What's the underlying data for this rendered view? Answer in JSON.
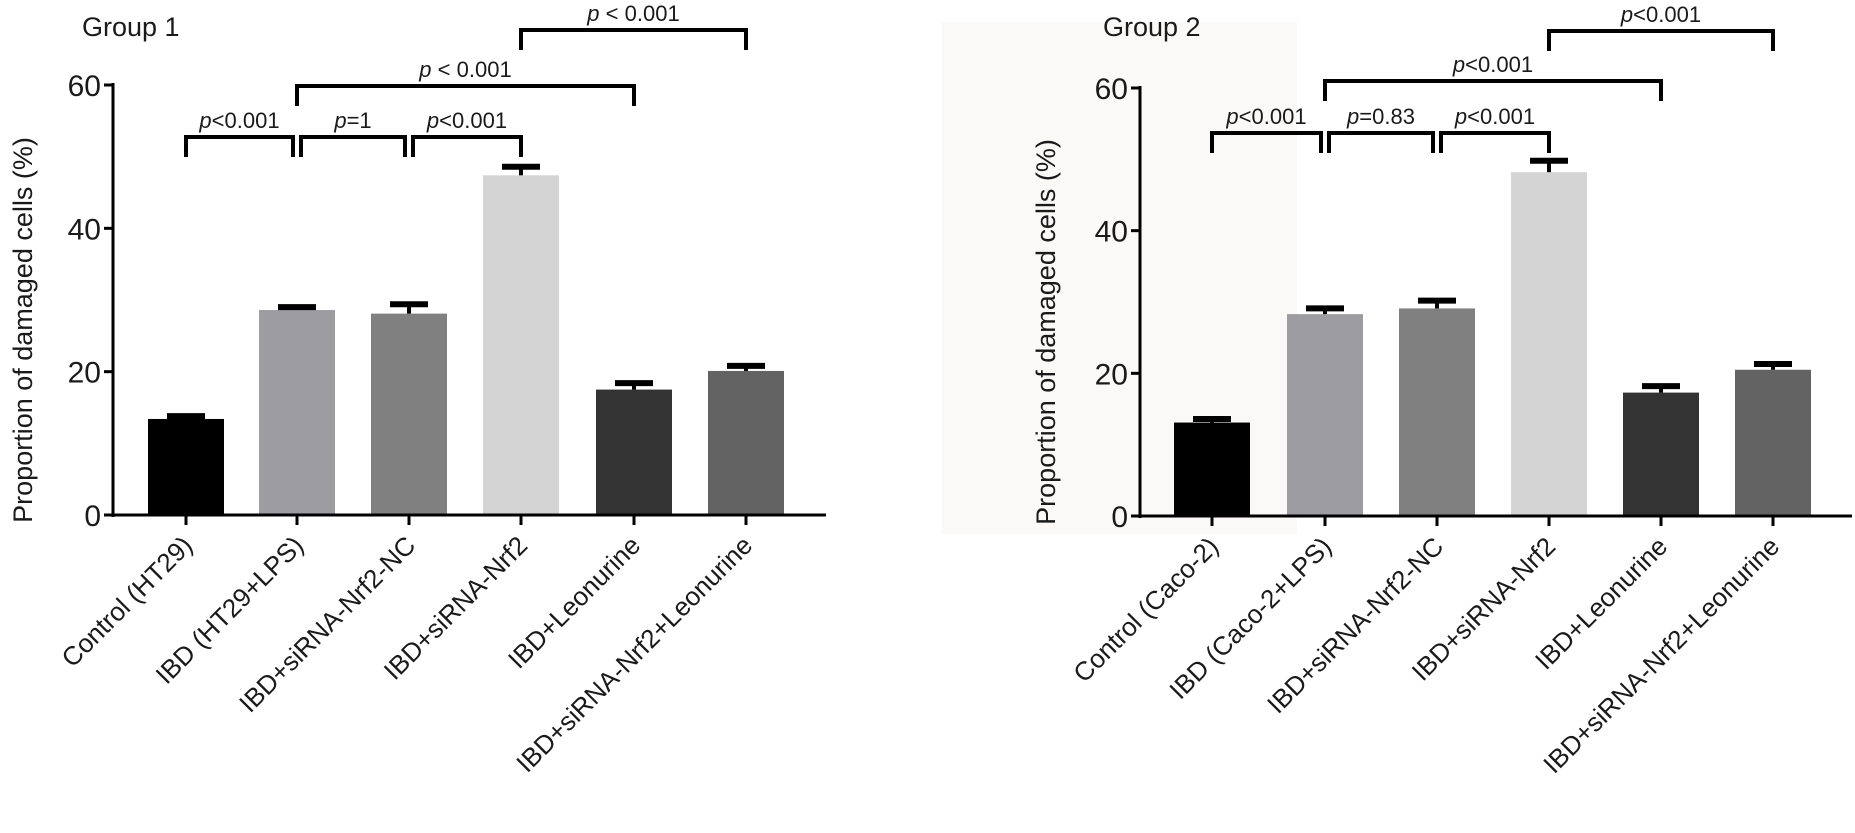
{
  "chart_data": [
    {
      "type": "bar",
      "title": "Group 1",
      "xlabel": "",
      "ylabel": "Proportion of damaged cells (%)",
      "ylim": [
        0,
        60
      ],
      "yticks": [
        0,
        20,
        40,
        60
      ],
      "grid": false,
      "categories": [
        "Control (HT29)",
        "IBD (HT29+LPS)",
        "IBD+siRNA-Nrf2-NC",
        "IBD+siRNA-Nrf2",
        "IBD+Leonurine",
        "IBD+siRNA-Nrf2+Leonurine"
      ],
      "values": [
        13.4,
        28.6,
        28.1,
        47.4,
        17.5,
        20.1
      ],
      "errors": [
        0.4,
        0.4,
        1.3,
        1.2,
        0.9,
        0.7
      ],
      "colors": [
        "#000000",
        "#9d9da1",
        "#808080",
        "#d4d4d4",
        "#333333",
        "#636363"
      ],
      "annotations": [
        {
          "label_prefix": "p",
          "label": "<0.001",
          "from": 0,
          "to": 1,
          "level": 0
        },
        {
          "label_prefix": "p",
          "label": "=1",
          "from": 1,
          "to": 2,
          "level": 0
        },
        {
          "label_prefix": "p",
          "label": "<0.001",
          "from": 2,
          "to": 3,
          "level": 0
        },
        {
          "label_prefix": "p",
          "label": " < 0.001",
          "from": 1,
          "to": 4,
          "level": 1
        },
        {
          "label_prefix": "p",
          "label": " < 0.001",
          "from": 3,
          "to": 5,
          "level": 2
        }
      ]
    },
    {
      "type": "bar",
      "title": "Group 2",
      "xlabel": "",
      "ylabel": "Proportion of damaged cells (%)",
      "ylim": [
        0,
        60
      ],
      "yticks": [
        0,
        20,
        40,
        60
      ],
      "grid": false,
      "categories": [
        "Control (Caco-2)",
        "IBD (Caco-2+LPS)",
        "IBD+siRNA-Nrf2-NC",
        "IBD+siRNA-Nrf2",
        "IBD+Leonurine",
        "IBD+siRNA-Nrf2+Leonurine"
      ],
      "values": [
        13.1,
        28.3,
        29.1,
        48.2,
        17.3,
        20.5
      ],
      "errors": [
        0.5,
        0.8,
        1.1,
        1.6,
        0.9,
        0.8
      ],
      "colors": [
        "#000000",
        "#9d9da1",
        "#808080",
        "#d4d4d4",
        "#333333",
        "#636363"
      ],
      "annotations": [
        {
          "label_prefix": "p",
          "label": "<0.001",
          "from": 0,
          "to": 1,
          "level": 0
        },
        {
          "label_prefix": "p",
          "label": "=0.83",
          "from": 1,
          "to": 2,
          "level": 0
        },
        {
          "label_prefix": "p",
          "label": "<0.001",
          "from": 2,
          "to": 3,
          "level": 0
        },
        {
          "label_prefix": "p",
          "label": "<0.001",
          "from": 1,
          "to": 4,
          "level": 1
        },
        {
          "label_prefix": "p",
          "label": "<0.001",
          "from": 3,
          "to": 5,
          "level": 2
        }
      ]
    }
  ]
}
